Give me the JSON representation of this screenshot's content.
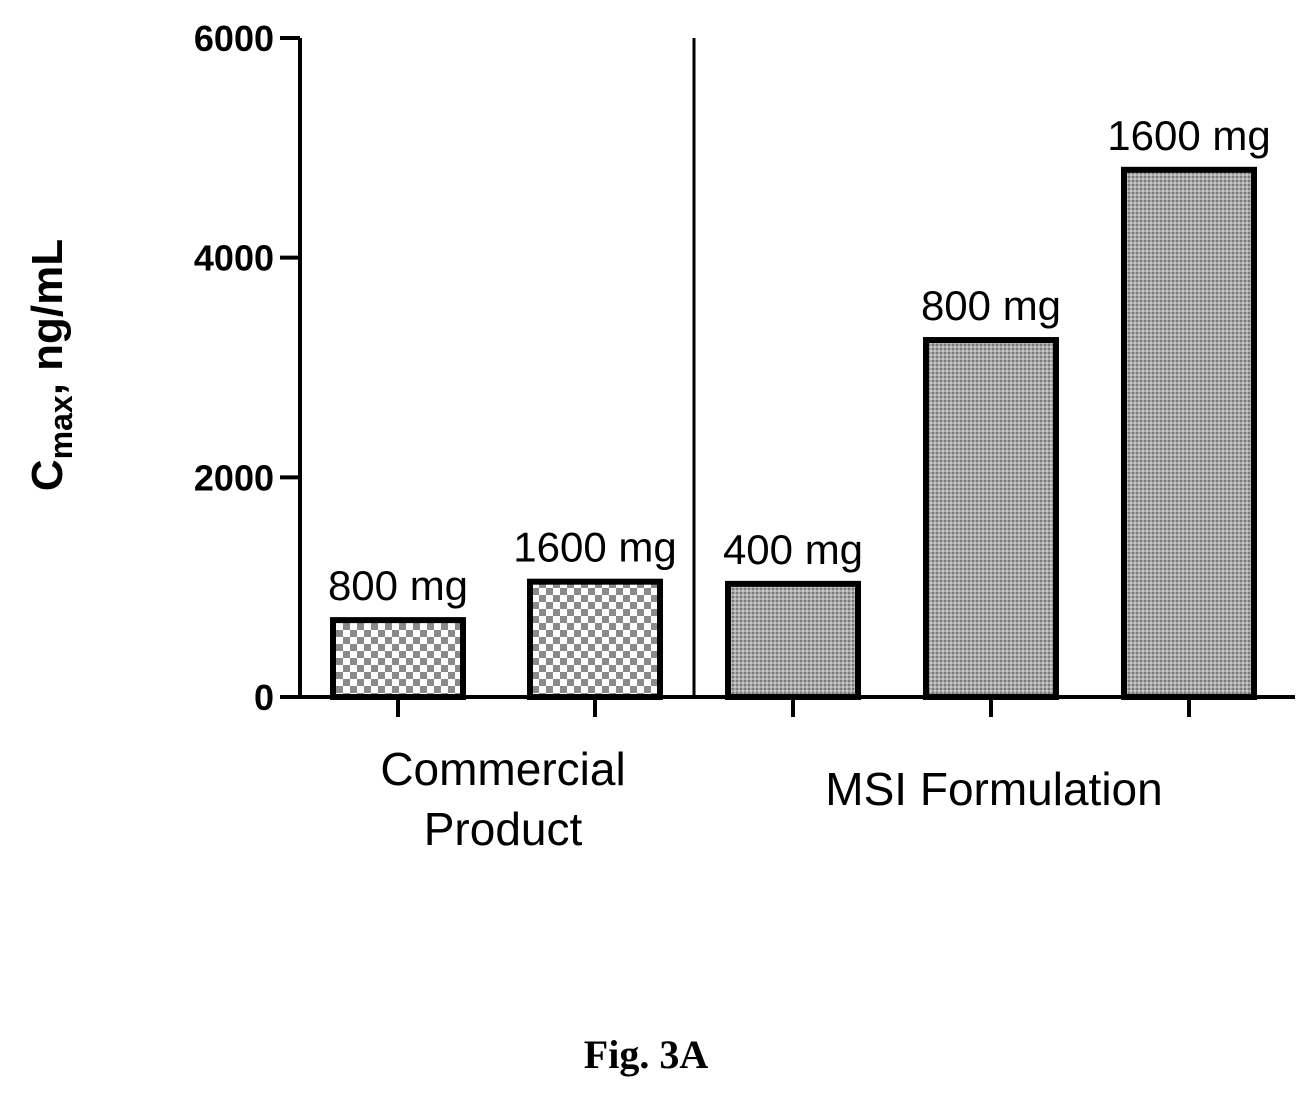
{
  "figure": {
    "caption": "Fig. 3A"
  },
  "chart_data": {
    "type": "bar",
    "ylabel_main": "C",
    "ylabel_sub": "max",
    "ylabel_rest": ", ng/mL",
    "ylim": [
      0,
      6000
    ],
    "yticks": [
      "0",
      "2000",
      "4000",
      "6000"
    ],
    "grid": false,
    "groups": [
      {
        "label_lines": [
          "Commercial",
          "Product"
        ],
        "pattern": "checker"
      },
      {
        "label_lines": [
          "MSI Formulation"
        ],
        "pattern": "dots"
      }
    ],
    "bars": [
      {
        "group": 0,
        "label": "800 mg",
        "value": 700
      },
      {
        "group": 0,
        "label": "1600 mg",
        "value": 1050
      },
      {
        "group": 1,
        "label": "400 mg",
        "value": 1030
      },
      {
        "group": 1,
        "label": "800 mg",
        "value": 3250
      },
      {
        "group": 1,
        "label": "1600 mg",
        "value": 4800
      }
    ]
  }
}
